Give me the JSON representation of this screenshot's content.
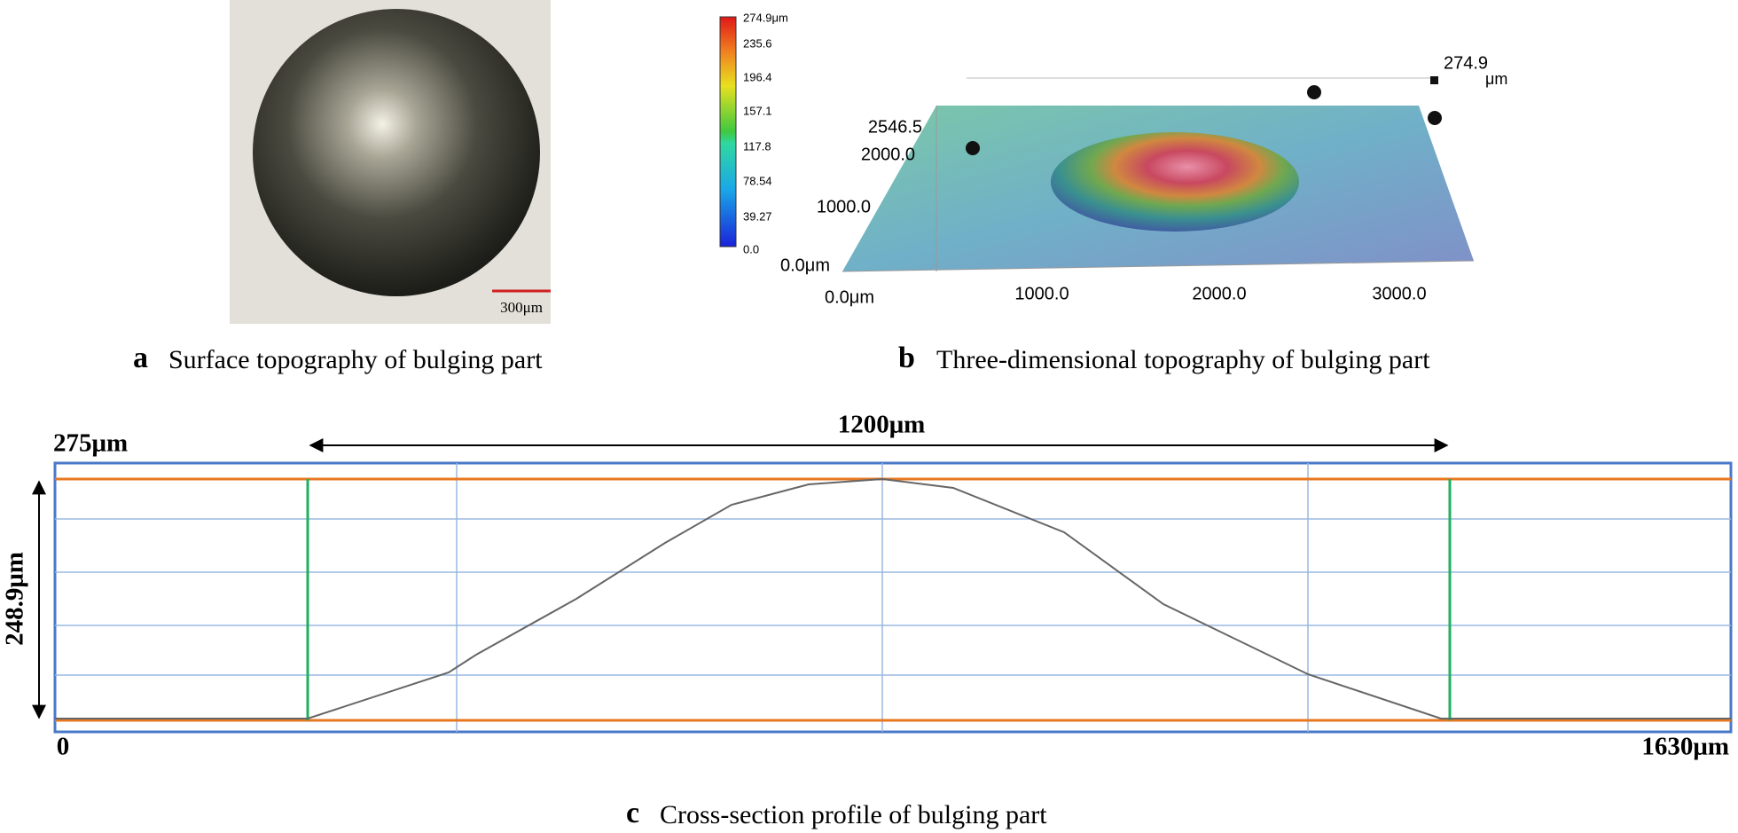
{
  "panel_a": {
    "letter": "a",
    "caption": "Surface topography of bulging part",
    "scale_bar": "300μm"
  },
  "panel_b": {
    "letter": "b",
    "caption": "Three-dimensional topography of bulging part",
    "colorbar_labels": [
      "274.9μm",
      "235.6",
      "196.4",
      "157.1",
      "117.8",
      "78.54",
      "39.27",
      "0.0"
    ],
    "z_max": "274.9",
    "z_unit": "μm",
    "y_labels": [
      "2546.5",
      "2000.0",
      "1000.0",
      "0.0μm"
    ],
    "x_labels": [
      "0.0μm",
      "1000.0",
      "2000.0",
      "3000.0"
    ]
  },
  "panel_c": {
    "letter": "c",
    "caption": "Cross-section profile of bulging part",
    "top_label": "275μm",
    "width_label": "1200μm",
    "height_label": "248.9μm",
    "x_start": "0",
    "x_end": "1630μm"
  }
}
